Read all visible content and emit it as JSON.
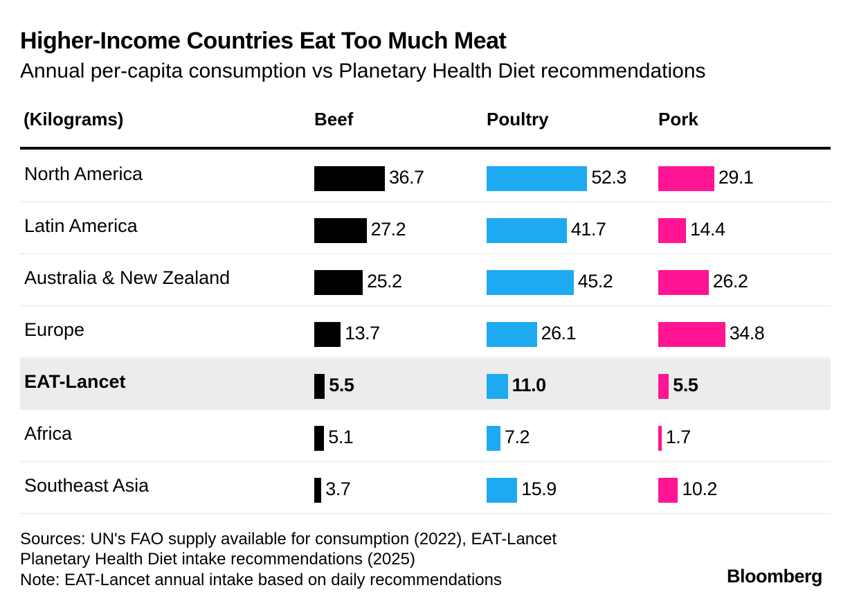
{
  "chart_data": {
    "type": "bar",
    "title": "Higher-Income Countries Eat Too Much Meat",
    "subtitle": "Annual per-capita consumption vs Planetary Health Diet recommendations",
    "unit_label": "(Kilograms)",
    "categories": [
      "North America",
      "Latin America",
      "Australia & New Zealand",
      "Europe",
      "EAT-Lancet",
      "Africa",
      "Southeast Asia"
    ],
    "highlight_category": "EAT-Lancet",
    "series": [
      {
        "name": "Beef",
        "color": "#000000",
        "values": [
          36.7,
          27.2,
          25.2,
          13.7,
          5.5,
          5.1,
          3.7
        ],
        "labels": [
          "36.7",
          "27.2",
          "25.2",
          "13.7",
          "5.5",
          "5.1",
          "3.7"
        ]
      },
      {
        "name": "Poultry",
        "color": "#1eaaf1",
        "values": [
          52.3,
          41.7,
          45.2,
          26.1,
          11.0,
          7.2,
          15.9
        ],
        "labels": [
          "52.3",
          "41.7",
          "45.2",
          "26.1",
          "11.0",
          "7.2",
          "15.9"
        ]
      },
      {
        "name": "Pork",
        "color": "#ff1493",
        "values": [
          29.1,
          14.4,
          26.2,
          34.8,
          5.5,
          1.7,
          10.2
        ],
        "labels": [
          "29.1",
          "14.4",
          "26.2",
          "34.8",
          "5.5",
          "1.7",
          "10.2"
        ]
      }
    ],
    "sources": [
      "Sources: UN's FAO supply available for consumption (2022), EAT-Lancet",
      "Planetary Health Diet intake recommendations (2025)",
      "Note: EAT-Lancet annual intake based on daily recommendations"
    ],
    "branding": "Bloomberg"
  }
}
